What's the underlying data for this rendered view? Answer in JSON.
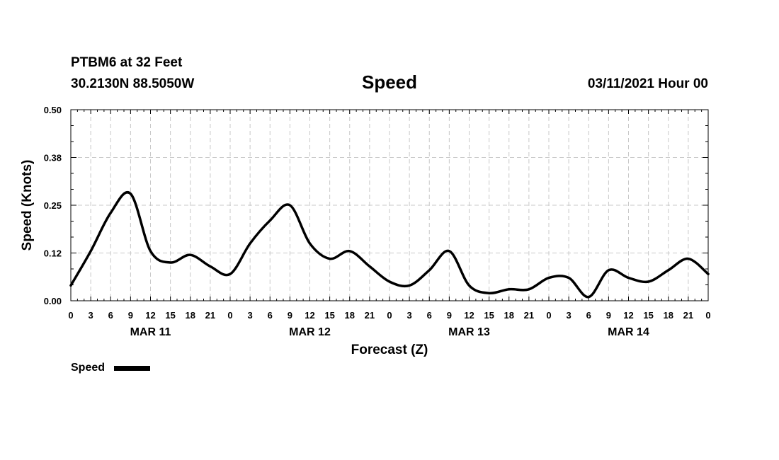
{
  "header": {
    "station_line": "PTBM6 at 32 Feet",
    "coords_line": "30.2130N 88.5050W",
    "datetime_line": "03/11/2021 Hour 00"
  },
  "chart_data": {
    "type": "line",
    "title": "Speed",
    "xlabel": "Forecast (Z)",
    "ylabel": "Speed (Knots)",
    "ylim": [
      0,
      0.5
    ],
    "y_ticks": [
      "0.00",
      "0.12",
      "0.25",
      "0.38",
      "0.50"
    ],
    "x_unit": "forecast hour",
    "xlim": [
      0,
      96
    ],
    "x_tick_labels": [
      "0",
      "3",
      "6",
      "9",
      "12",
      "15",
      "18",
      "21",
      "0",
      "3",
      "6",
      "9",
      "12",
      "15",
      "18",
      "21",
      "0",
      "3",
      "6",
      "9",
      "12",
      "15",
      "18",
      "21",
      "0",
      "3",
      "6",
      "9",
      "12",
      "15",
      "18",
      "21",
      "0"
    ],
    "day_labels": [
      {
        "label": "MAR 11",
        "hour": 12
      },
      {
        "label": "MAR 12",
        "hour": 36
      },
      {
        "label": "MAR 13",
        "hour": 60
      },
      {
        "label": "MAR 14",
        "hour": 84
      }
    ],
    "grid": true,
    "legend_position": "bottom-left",
    "series": [
      {
        "name": "Speed",
        "color": "#000000",
        "x": [
          0,
          3,
          6,
          9,
          12,
          15,
          18,
          21,
          24,
          27,
          30,
          33,
          36,
          39,
          42,
          45,
          48,
          51,
          54,
          57,
          60,
          63,
          66,
          69,
          72,
          75,
          78,
          81,
          84,
          87,
          90,
          93,
          96
        ],
        "values": [
          0.04,
          0.13,
          0.23,
          0.28,
          0.13,
          0.1,
          0.12,
          0.09,
          0.07,
          0.15,
          0.21,
          0.25,
          0.15,
          0.11,
          0.13,
          0.09,
          0.05,
          0.04,
          0.08,
          0.13,
          0.04,
          0.02,
          0.03,
          0.03,
          0.06,
          0.06,
          0.01,
          0.08,
          0.06,
          0.05,
          0.08,
          0.11,
          0.07
        ]
      }
    ]
  }
}
